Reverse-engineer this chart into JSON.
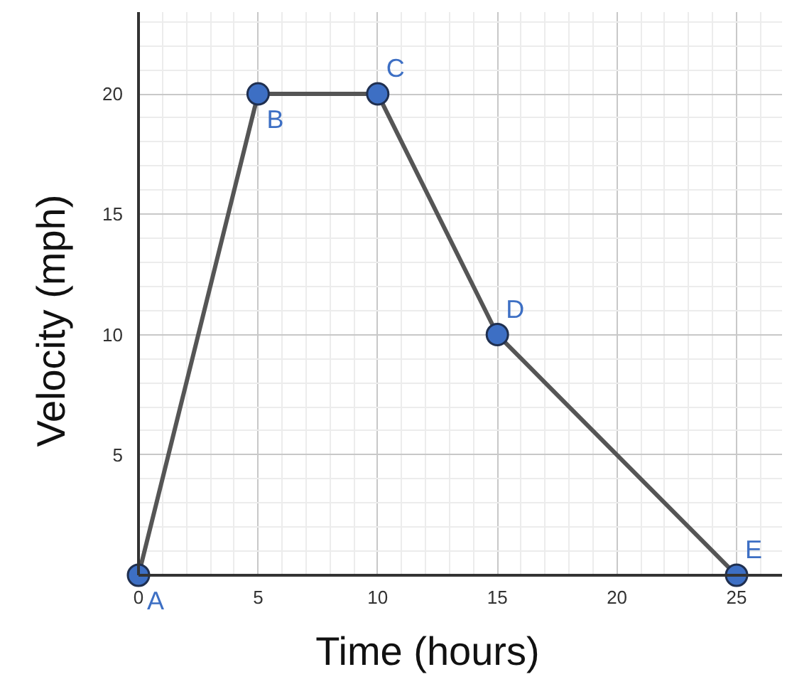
{
  "chart_data": {
    "type": "line",
    "xlabel": "Time (hours)",
    "ylabel": "Velocity (mph)",
    "x": [
      0,
      5,
      10,
      15,
      25
    ],
    "series": [
      {
        "color": "#555555",
        "values": [
          0,
          20,
          20,
          10,
          0
        ]
      }
    ],
    "marker": "circle",
    "line_style": "solid",
    "grid": true,
    "xlim": [
      0,
      26.9
    ],
    "ylim": [
      0,
      23.4
    ],
    "xticks": [
      0,
      5,
      10,
      15,
      20,
      25
    ],
    "yticks": [
      {
        "value": 0,
        "label": null
      },
      5,
      10,
      15,
      20
    ],
    "annotations": [
      {
        "text": "A",
        "x": 0,
        "y": 0
      },
      {
        "text": "B",
        "x": 5,
        "y": 20
      },
      {
        "text": "C",
        "x": 10,
        "y": 20
      },
      {
        "text": "D",
        "x": 15,
        "y": 10
      },
      {
        "text": "E",
        "x": 25,
        "y": 0
      }
    ]
  }
}
